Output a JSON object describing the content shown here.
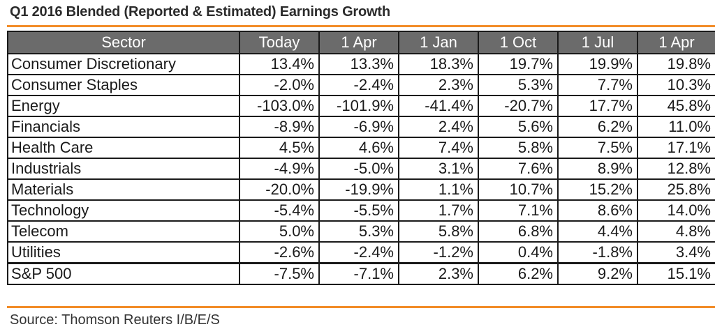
{
  "title": "Q1 2016 Blended (Reported & Estimated) Earnings Growth",
  "source": "Source: Thomson Reuters I/B/E/S",
  "colors": {
    "accent": "#f28c28",
    "header_bg": "#6b6b6b"
  },
  "chart_data": {
    "type": "table",
    "title": "Q1 2016 Blended (Reported & Estimated) Earnings Growth",
    "columns": [
      "Sector",
      "Today",
      "1 Apr",
      "1 Jan",
      "1 Oct",
      "1 Jul",
      "1 Apr"
    ],
    "rows": [
      {
        "sector": "Consumer Discretionary",
        "values": [
          "13.4%",
          "13.3%",
          "18.3%",
          "19.7%",
          "19.9%",
          "19.8%"
        ]
      },
      {
        "sector": "Consumer Staples",
        "values": [
          "-2.0%",
          "-2.4%",
          "2.3%",
          "5.3%",
          "7.7%",
          "10.3%"
        ]
      },
      {
        "sector": "Energy",
        "values": [
          "-103.0%",
          "-101.9%",
          "-41.4%",
          "-20.7%",
          "17.7%",
          "45.8%"
        ]
      },
      {
        "sector": "Financials",
        "values": [
          "-8.9%",
          "-6.9%",
          "2.4%",
          "5.6%",
          "6.2%",
          "11.0%"
        ]
      },
      {
        "sector": "Health Care",
        "values": [
          "4.5%",
          "4.6%",
          "7.4%",
          "5.8%",
          "7.5%",
          "17.1%"
        ]
      },
      {
        "sector": "Industrials",
        "values": [
          "-4.9%",
          "-5.0%",
          "3.1%",
          "7.6%",
          "8.9%",
          "12.8%"
        ]
      },
      {
        "sector": "Materials",
        "values": [
          "-20.0%",
          "-19.9%",
          "1.1%",
          "10.7%",
          "15.2%",
          "25.8%"
        ]
      },
      {
        "sector": "Technology",
        "values": [
          "-5.4%",
          "-5.5%",
          "1.7%",
          "7.1%",
          "8.6%",
          "14.0%"
        ]
      },
      {
        "sector": "Telecom",
        "values": [
          "5.0%",
          "5.3%",
          "5.8%",
          "6.8%",
          "4.4%",
          "4.8%"
        ]
      },
      {
        "sector": "Utilities",
        "values": [
          "-2.6%",
          "-2.4%",
          "-1.2%",
          "0.4%",
          "-1.8%",
          "3.4%"
        ]
      },
      {
        "sector": "S&P 500",
        "values": [
          "-7.5%",
          "-7.1%",
          "2.3%",
          "6.2%",
          "9.2%",
          "15.1%"
        ],
        "total": true
      }
    ]
  }
}
